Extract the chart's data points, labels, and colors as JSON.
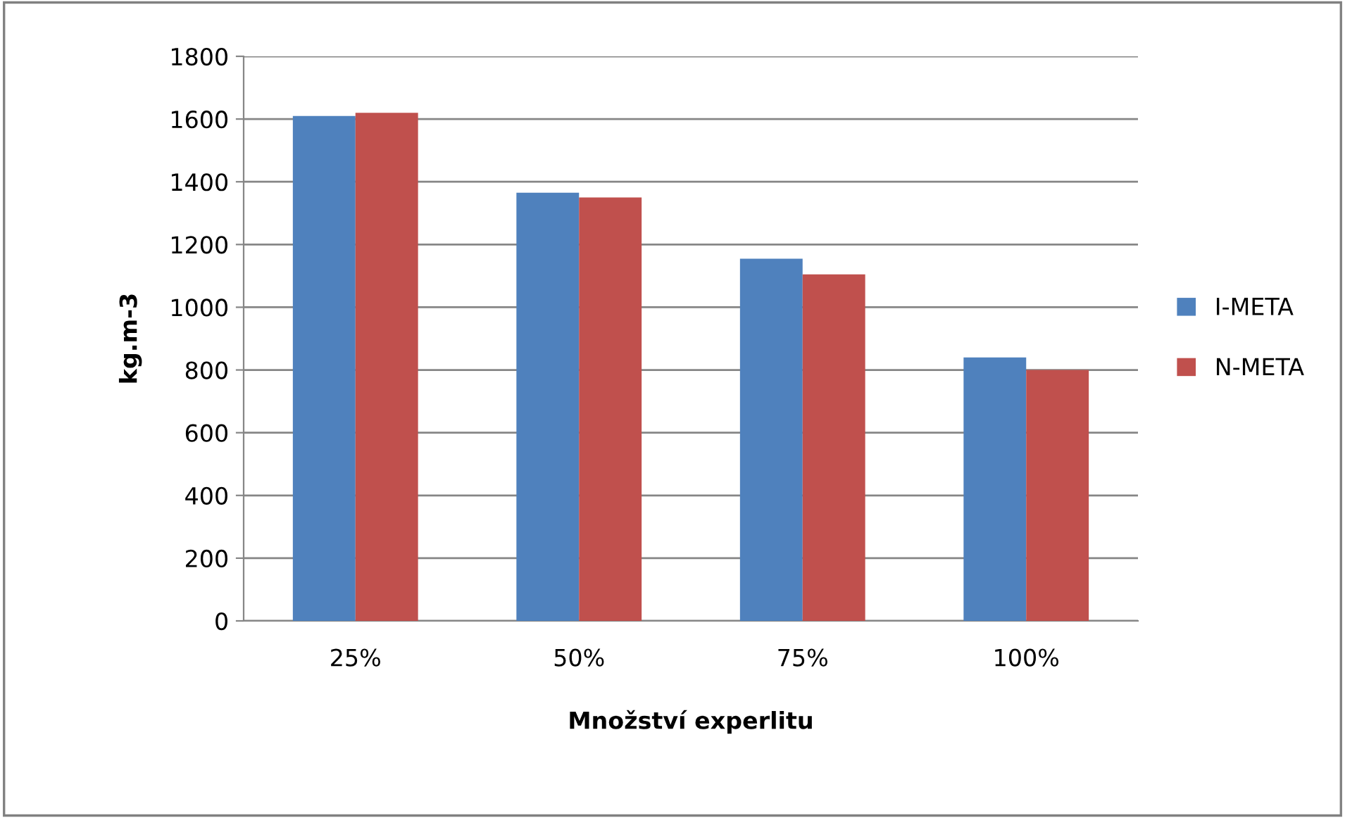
{
  "chart_data": {
    "type": "bar",
    "xlabel": "Množství experlitu",
    "ylabel": "kg.m-3",
    "categories": [
      "25%",
      "50%",
      "75%",
      "100%"
    ],
    "series": [
      {
        "name": "I-META",
        "color": "#4f81bd",
        "values": [
          1610,
          1365,
          1155,
          840
        ]
      },
      {
        "name": "N-META",
        "color": "#c0504d",
        "values": [
          1620,
          1350,
          1105,
          800
        ]
      }
    ],
    "ylim": [
      0,
      1800
    ],
    "yticks": [
      0,
      200,
      400,
      600,
      800,
      1000,
      1200,
      1400,
      1600,
      1800
    ],
    "grid": "y",
    "legend": "right"
  }
}
